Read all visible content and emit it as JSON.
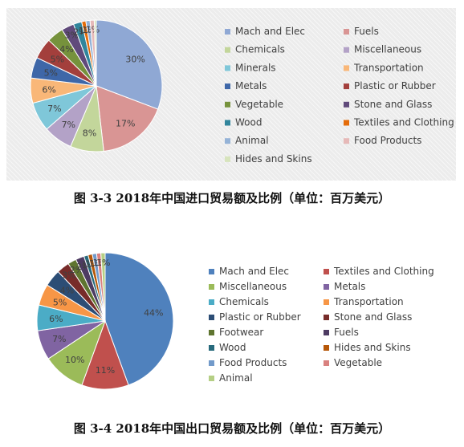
{
  "chart_data": [
    {
      "type": "pie",
      "title": "",
      "caption": "图 3-3 2018年中国进口贸易额及比例（单位：百万美元）",
      "legend_position": "right",
      "background": "#ececec",
      "series": [
        {
          "name": "Mach and Elec",
          "value": 30,
          "label": "30%",
          "color": "#8fa8d4"
        },
        {
          "name": "Fuels",
          "value": 17,
          "label": "17%",
          "color": "#d99594"
        },
        {
          "name": "Chemicals",
          "value": 8,
          "label": "8%",
          "color": "#c3d69b"
        },
        {
          "name": "Miscellaneous",
          "value": 7,
          "label": "7%",
          "color": "#b3a2c7"
        },
        {
          "name": "Minerals",
          "value": 7,
          "label": "7%",
          "color": "#7fc7d9"
        },
        {
          "name": "Transportation",
          "value": 6,
          "label": "6%",
          "color": "#f9b778"
        },
        {
          "name": "Metals",
          "value": 5,
          "label": "5%",
          "color": "#3e67a8"
        },
        {
          "name": "Plastic or Rubber",
          "value": 5,
          "label": "5%",
          "color": "#a33f3c"
        },
        {
          "name": "Vegetable",
          "value": 4,
          "label": "4%",
          "color": "#76923c"
        },
        {
          "name": "Stone and Glass",
          "value": 3,
          "label": "3%",
          "color": "#604a7b"
        },
        {
          "name": "Wood",
          "value": 2,
          "label": "2%",
          "color": "#31859c"
        },
        {
          "name": "Textiles and Clothing",
          "value": 1,
          "label": "1%",
          "color": "#e46c0a"
        },
        {
          "name": "Animal",
          "value": 1,
          "label": "1%",
          "color": "#95b3d7"
        },
        {
          "name": "Food Products",
          "value": 1,
          "label": "1%",
          "color": "#e6b9b8"
        },
        {
          "name": "Hides and Skins",
          "value": 0.5,
          "label": "",
          "color": "#d7e4bd"
        }
      ]
    },
    {
      "type": "pie",
      "title": "",
      "caption": "图 3-4 2018年中国出口贸易额及比例（单位：百万美元）",
      "legend_position": "right",
      "background": "#ffffff",
      "series": [
        {
          "name": "Mach and Elec",
          "value": 44,
          "label": "44%",
          "color": "#4f81bd"
        },
        {
          "name": "Textiles and Clothing",
          "value": 11,
          "label": "11%",
          "color": "#c0504d"
        },
        {
          "name": "Miscellaneous",
          "value": 10,
          "label": "10%",
          "color": "#9bbb59"
        },
        {
          "name": "Metals",
          "value": 7,
          "label": "7%",
          "color": "#8064a2"
        },
        {
          "name": "Chemicals",
          "value": 6,
          "label": "6%",
          "color": "#4bacc6"
        },
        {
          "name": "Transportation",
          "value": 5,
          "label": "5%",
          "color": "#f79646"
        },
        {
          "name": "Plastic or Rubber",
          "value": 4,
          "label": "4%",
          "color": "#2c4d75"
        },
        {
          "name": "Stone and Glass",
          "value": 3,
          "label": "3%",
          "color": "#772c2a"
        },
        {
          "name": "Footwear",
          "value": 2,
          "label": "2%",
          "color": "#5f7530"
        },
        {
          "name": "Fuels",
          "value": 2,
          "label": "2%",
          "color": "#4d3b62"
        },
        {
          "name": "Wood",
          "value": 1,
          "label": "1%",
          "color": "#276a7c"
        },
        {
          "name": "Hides and Skins",
          "value": 1,
          "label": "1%",
          "color": "#b65708"
        },
        {
          "name": "Food Products",
          "value": 1,
          "label": "1%",
          "color": "#729aca"
        },
        {
          "name": "Vegetable",
          "value": 1,
          "label": "1%",
          "color": "#d9817f"
        },
        {
          "name": "Animal",
          "value": 1,
          "label": "1%",
          "color": "#b5cf85"
        }
      ]
    }
  ]
}
